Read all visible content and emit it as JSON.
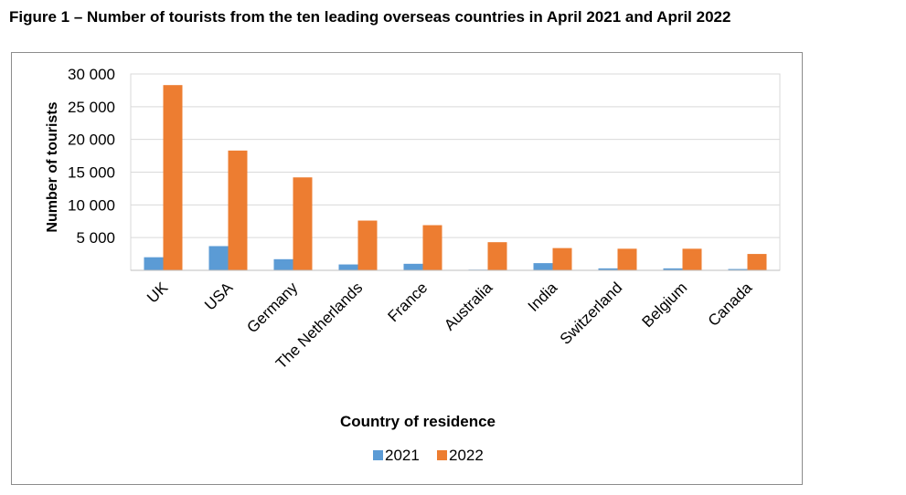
{
  "figure_title": "Figure 1 – Number of tourists from the ten leading overseas countries in April 2021 and April 2022",
  "chart_data": {
    "type": "bar",
    "title": "",
    "xlabel": "Country of residence",
    "ylabel": "Number of tourists",
    "categories": [
      "UK",
      "USA",
      "Germany",
      "The Netherlands",
      "France",
      "Australia",
      "India",
      "Switzerland",
      "Belgium",
      "Canada"
    ],
    "series": [
      {
        "name": "2021",
        "color": "#5b9bd5",
        "values": [
          2000,
          3700,
          1700,
          900,
          1000,
          100,
          1100,
          300,
          300,
          200
        ]
      },
      {
        "name": "2022",
        "color": "#ed7d31",
        "values": [
          28300,
          18300,
          14200,
          7600,
          6900,
          4300,
          3400,
          3300,
          3300,
          2500
        ]
      }
    ],
    "ylim": [
      0,
      30000
    ],
    "yticks": [
      5000,
      10000,
      15000,
      20000,
      25000,
      30000
    ],
    "ytick_labels": [
      "5 000",
      "10 000",
      "15 000",
      "20 000",
      "25 000",
      "30 000"
    ],
    "grid": true,
    "legend_position": "bottom"
  }
}
